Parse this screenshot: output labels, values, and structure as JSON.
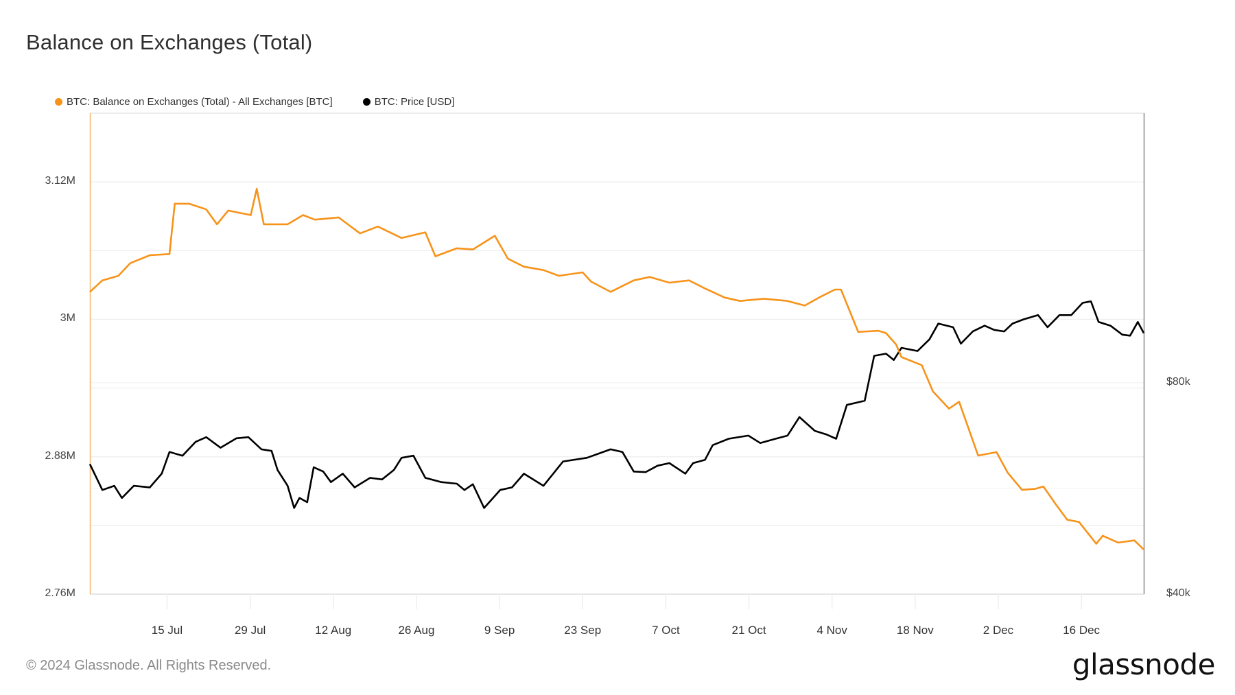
{
  "title": "Balance on Exchanges (Total)",
  "legend": [
    {
      "label": "BTC: Balance on Exchanges (Total) - All Exchanges [BTC]",
      "color": "#F7931A"
    },
    {
      "label": "BTC: Price [USD]",
      "color": "#000000"
    }
  ],
  "left_axis": {
    "labels": [
      {
        "text": "3.12M",
        "value": 3.12
      },
      {
        "text": "3M",
        "value": 3.0
      },
      {
        "text": "2.88M",
        "value": 2.88
      },
      {
        "text": "2.76M",
        "value": 2.76
      }
    ]
  },
  "right_axis": {
    "labels": [
      {
        "text": "$80k",
        "value": 80
      },
      {
        "text": "$40k",
        "value": 40
      }
    ]
  },
  "x_axis": {
    "ticks": [
      {
        "text": "15 Jul",
        "day": 13
      },
      {
        "text": "29 Jul",
        "day": 27
      },
      {
        "text": "12 Aug",
        "day": 41
      },
      {
        "text": "26 Aug",
        "day": 55
      },
      {
        "text": "9 Sep",
        "day": 69
      },
      {
        "text": "23 Sep",
        "day": 83
      },
      {
        "text": "7 Oct",
        "day": 97
      },
      {
        "text": "21 Oct",
        "day": 111
      },
      {
        "text": "4 Nov",
        "day": 125
      },
      {
        "text": "18 Nov",
        "day": 139
      },
      {
        "text": "2 Dec",
        "day": 153
      },
      {
        "text": "16 Dec",
        "day": 167
      }
    ]
  },
  "footer": "© 2024 Glassnode. All Rights Reserved.",
  "logo": "glassnode",
  "chart_data": {
    "type": "line",
    "title": "Balance on Exchanges (Total)",
    "xlabel": "",
    "ylabel_left": "BTC",
    "ylabel_right": "USD",
    "x_range_days": [
      0,
      177.5
    ],
    "x_origin": "2 Jul 2024",
    "ylim_left": [
      2.76,
      3.18
    ],
    "ylim_right": [
      40,
      131
    ],
    "grid": true,
    "legend_position": "top-left",
    "series": [
      {
        "name": "BTC: Balance on Exchanges (Total) - All Exchanges [BTC]",
        "axis": "left",
        "color": "#F7931A",
        "unit": "M BTC",
        "points": [
          [
            0,
            3.024
          ],
          [
            2.1,
            3.034
          ],
          [
            4.8,
            3.038
          ],
          [
            6.8,
            3.049
          ],
          [
            10.1,
            3.056
          ],
          [
            13.4,
            3.057
          ],
          [
            14.3,
            3.101
          ],
          [
            16.7,
            3.101
          ],
          [
            19.6,
            3.096
          ],
          [
            21.4,
            3.083
          ],
          [
            23.3,
            3.095
          ],
          [
            27.1,
            3.091
          ],
          [
            28.1,
            3.114
          ],
          [
            29.3,
            3.083
          ],
          [
            33.3,
            3.083
          ],
          [
            35.9,
            3.091
          ],
          [
            37.9,
            3.087
          ],
          [
            41.9,
            3.089
          ],
          [
            45.5,
            3.075
          ],
          [
            48.5,
            3.081
          ],
          [
            52.5,
            3.071
          ],
          [
            56.5,
            3.076
          ],
          [
            58.2,
            3.055
          ],
          [
            61.8,
            3.062
          ],
          [
            64.5,
            3.061
          ],
          [
            68.2,
            3.073
          ],
          [
            70.4,
            3.053
          ],
          [
            73.1,
            3.046
          ],
          [
            76.4,
            3.043
          ],
          [
            79.0,
            3.038
          ],
          [
            83.0,
            3.041
          ],
          [
            84.4,
            3.033
          ],
          [
            87.7,
            3.024
          ],
          [
            91.6,
            3.034
          ],
          [
            94.3,
            3.037
          ],
          [
            97.6,
            3.032
          ],
          [
            100.9,
            3.034
          ],
          [
            103.6,
            3.027
          ],
          [
            106.9,
            3.019
          ],
          [
            109.5,
            3.016
          ],
          [
            113.5,
            3.018
          ],
          [
            117.5,
            3.016
          ],
          [
            120.4,
            3.012
          ],
          [
            122.8,
            3.019
          ],
          [
            125.5,
            3.026
          ],
          [
            126.5,
            3.026
          ],
          [
            129.4,
            2.989
          ],
          [
            132.8,
            2.99
          ],
          [
            134.1,
            2.988
          ],
          [
            135.8,
            2.978
          ],
          [
            136.7,
            2.967
          ],
          [
            140.1,
            2.96
          ],
          [
            142.0,
            2.937
          ],
          [
            144.7,
            2.922
          ],
          [
            146.4,
            2.928
          ],
          [
            149.6,
            2.881
          ],
          [
            152.7,
            2.884
          ],
          [
            154.6,
            2.866
          ],
          [
            157.0,
            2.851
          ],
          [
            159.3,
            2.852
          ],
          [
            160.6,
            2.854
          ],
          [
            162.6,
            2.839
          ],
          [
            164.6,
            2.825
          ],
          [
            166.6,
            2.823
          ],
          [
            169.5,
            2.804
          ],
          [
            170.6,
            2.811
          ],
          [
            173.2,
            2.805
          ],
          [
            175.9,
            2.807
          ],
          [
            177.5,
            2.799
          ]
        ]
      },
      {
        "name": "BTC: Price [USD]",
        "axis": "right",
        "color": "#000000",
        "unit": "k USD",
        "points": [
          [
            0,
            64.6
          ],
          [
            2.1,
            59.7
          ],
          [
            4.1,
            60.5
          ],
          [
            5.4,
            58.2
          ],
          [
            7.4,
            60.5
          ],
          [
            10.1,
            60.2
          ],
          [
            12.1,
            62.8
          ],
          [
            13.4,
            66.9
          ],
          [
            15.6,
            66.2
          ],
          [
            17.8,
            68.8
          ],
          [
            19.6,
            69.7
          ],
          [
            22.0,
            67.7
          ],
          [
            24.7,
            69.5
          ],
          [
            26.7,
            69.7
          ],
          [
            28.9,
            67.4
          ],
          [
            30.6,
            67.1
          ],
          [
            31.6,
            63.5
          ],
          [
            33.3,
            60.5
          ],
          [
            34.4,
            56.3
          ],
          [
            35.3,
            58.2
          ],
          [
            36.6,
            57.4
          ],
          [
            37.7,
            64.0
          ],
          [
            39.3,
            63.2
          ],
          [
            40.6,
            61.2
          ],
          [
            42.6,
            62.8
          ],
          [
            44.6,
            60.2
          ],
          [
            47.2,
            62.0
          ],
          [
            49.2,
            61.7
          ],
          [
            51.2,
            63.5
          ],
          [
            52.5,
            65.8
          ],
          [
            54.5,
            66.2
          ],
          [
            56.5,
            62.0
          ],
          [
            59.2,
            61.2
          ],
          [
            61.8,
            60.9
          ],
          [
            63.1,
            59.7
          ],
          [
            64.5,
            60.8
          ],
          [
            66.4,
            56.3
          ],
          [
            69.1,
            59.7
          ],
          [
            71.1,
            60.2
          ],
          [
            73.1,
            62.8
          ],
          [
            76.4,
            60.5
          ],
          [
            79.7,
            65.1
          ],
          [
            83.7,
            65.8
          ],
          [
            85.7,
            66.6
          ],
          [
            87.7,
            67.4
          ],
          [
            89.7,
            66.9
          ],
          [
            91.6,
            63.2
          ],
          [
            93.6,
            63.1
          ],
          [
            95.6,
            64.3
          ],
          [
            97.6,
            64.8
          ],
          [
            100.3,
            62.8
          ],
          [
            101.6,
            64.8
          ],
          [
            103.6,
            65.4
          ],
          [
            104.9,
            68.2
          ],
          [
            107.6,
            69.4
          ],
          [
            110.9,
            70.0
          ],
          [
            112.9,
            68.6
          ],
          [
            115.5,
            69.4
          ],
          [
            117.5,
            70.0
          ],
          [
            119.5,
            73.5
          ],
          [
            122.1,
            70.9
          ],
          [
            124.1,
            70.2
          ],
          [
            125.7,
            69.4
          ],
          [
            127.5,
            75.8
          ],
          [
            130.5,
            76.6
          ],
          [
            132.1,
            85.1
          ],
          [
            134.1,
            85.5
          ],
          [
            135.4,
            84.3
          ],
          [
            136.7,
            86.6
          ],
          [
            139.4,
            86.0
          ],
          [
            141.4,
            88.2
          ],
          [
            142.9,
            91.2
          ],
          [
            145.4,
            90.5
          ],
          [
            146.7,
            87.4
          ],
          [
            148.7,
            89.7
          ],
          [
            150.7,
            90.8
          ],
          [
            152.3,
            90.0
          ],
          [
            154.0,
            89.7
          ],
          [
            155.4,
            91.2
          ],
          [
            157.3,
            92.0
          ],
          [
            159.7,
            92.8
          ],
          [
            161.3,
            90.5
          ],
          [
            163.3,
            92.8
          ],
          [
            165.3,
            92.8
          ],
          [
            167.2,
            95.1
          ],
          [
            168.6,
            95.4
          ],
          [
            169.9,
            91.5
          ],
          [
            171.9,
            90.8
          ],
          [
            173.9,
            89.1
          ],
          [
            175.2,
            88.9
          ],
          [
            176.5,
            91.5
          ],
          [
            177.5,
            89.4
          ]
        ]
      }
    ]
  }
}
